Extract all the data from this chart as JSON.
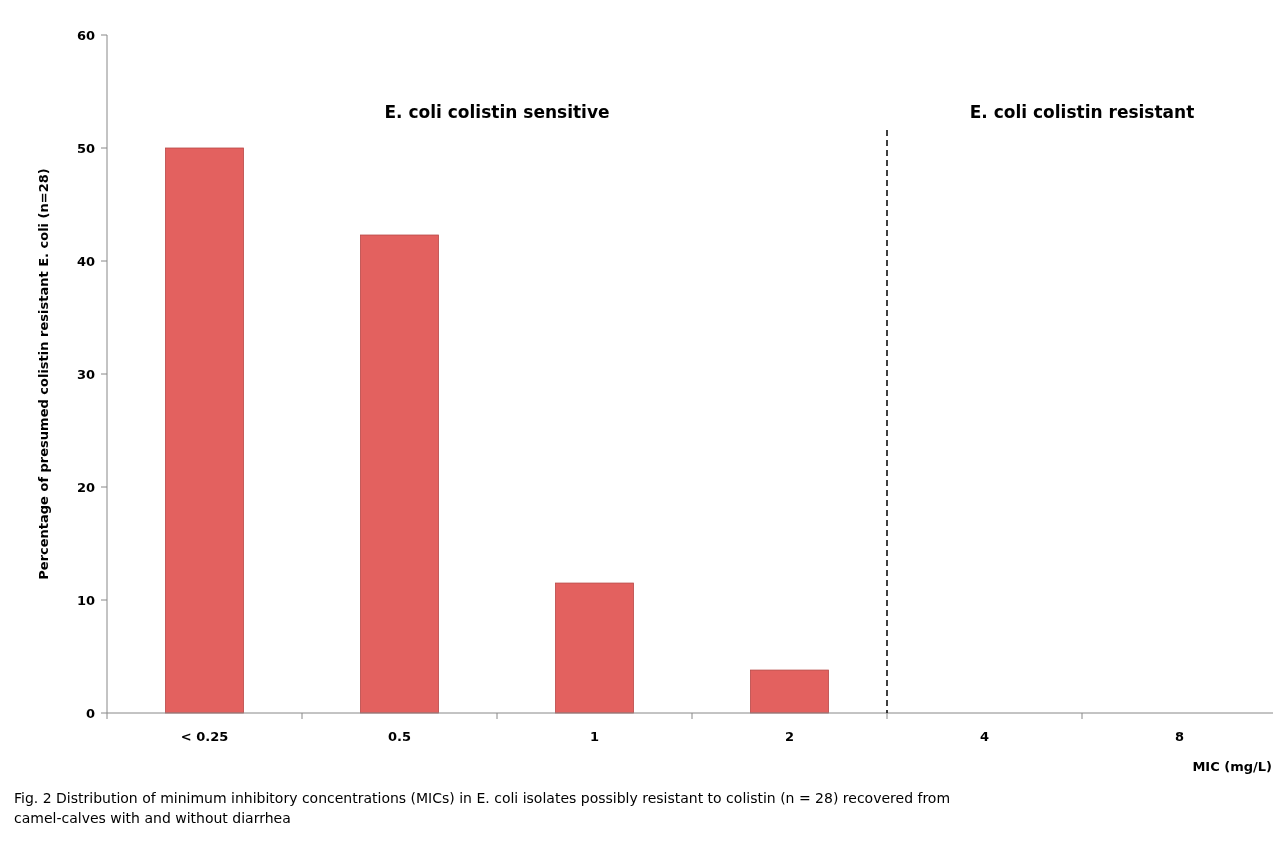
{
  "chart_data": {
    "type": "bar",
    "ylabel": "Percentage of presumed colistin resistant E. coli (n=28)",
    "xlabel": "MIC (mg/L)",
    "categories": [
      "< 0.25",
      "0.5",
      "1",
      "2",
      "4",
      "8"
    ],
    "values": [
      50,
      42.3,
      11.5,
      3.8,
      0,
      0
    ],
    "color": "#e3615f",
    "ylim": [
      0,
      60
    ],
    "yticks": [
      0,
      10,
      20,
      30,
      40,
      50,
      60
    ],
    "grid": false,
    "annotations": [
      "E. coli colistin sensitive",
      "E. coli colistin resistant",
      "Fig. 2  Distribution of minimum inhibitory concentrations (MICs) in E. coli isolates possibly resistant to colistin (n = 28) recovered from camel-calves with and without diarrhea"
    ]
  }
}
